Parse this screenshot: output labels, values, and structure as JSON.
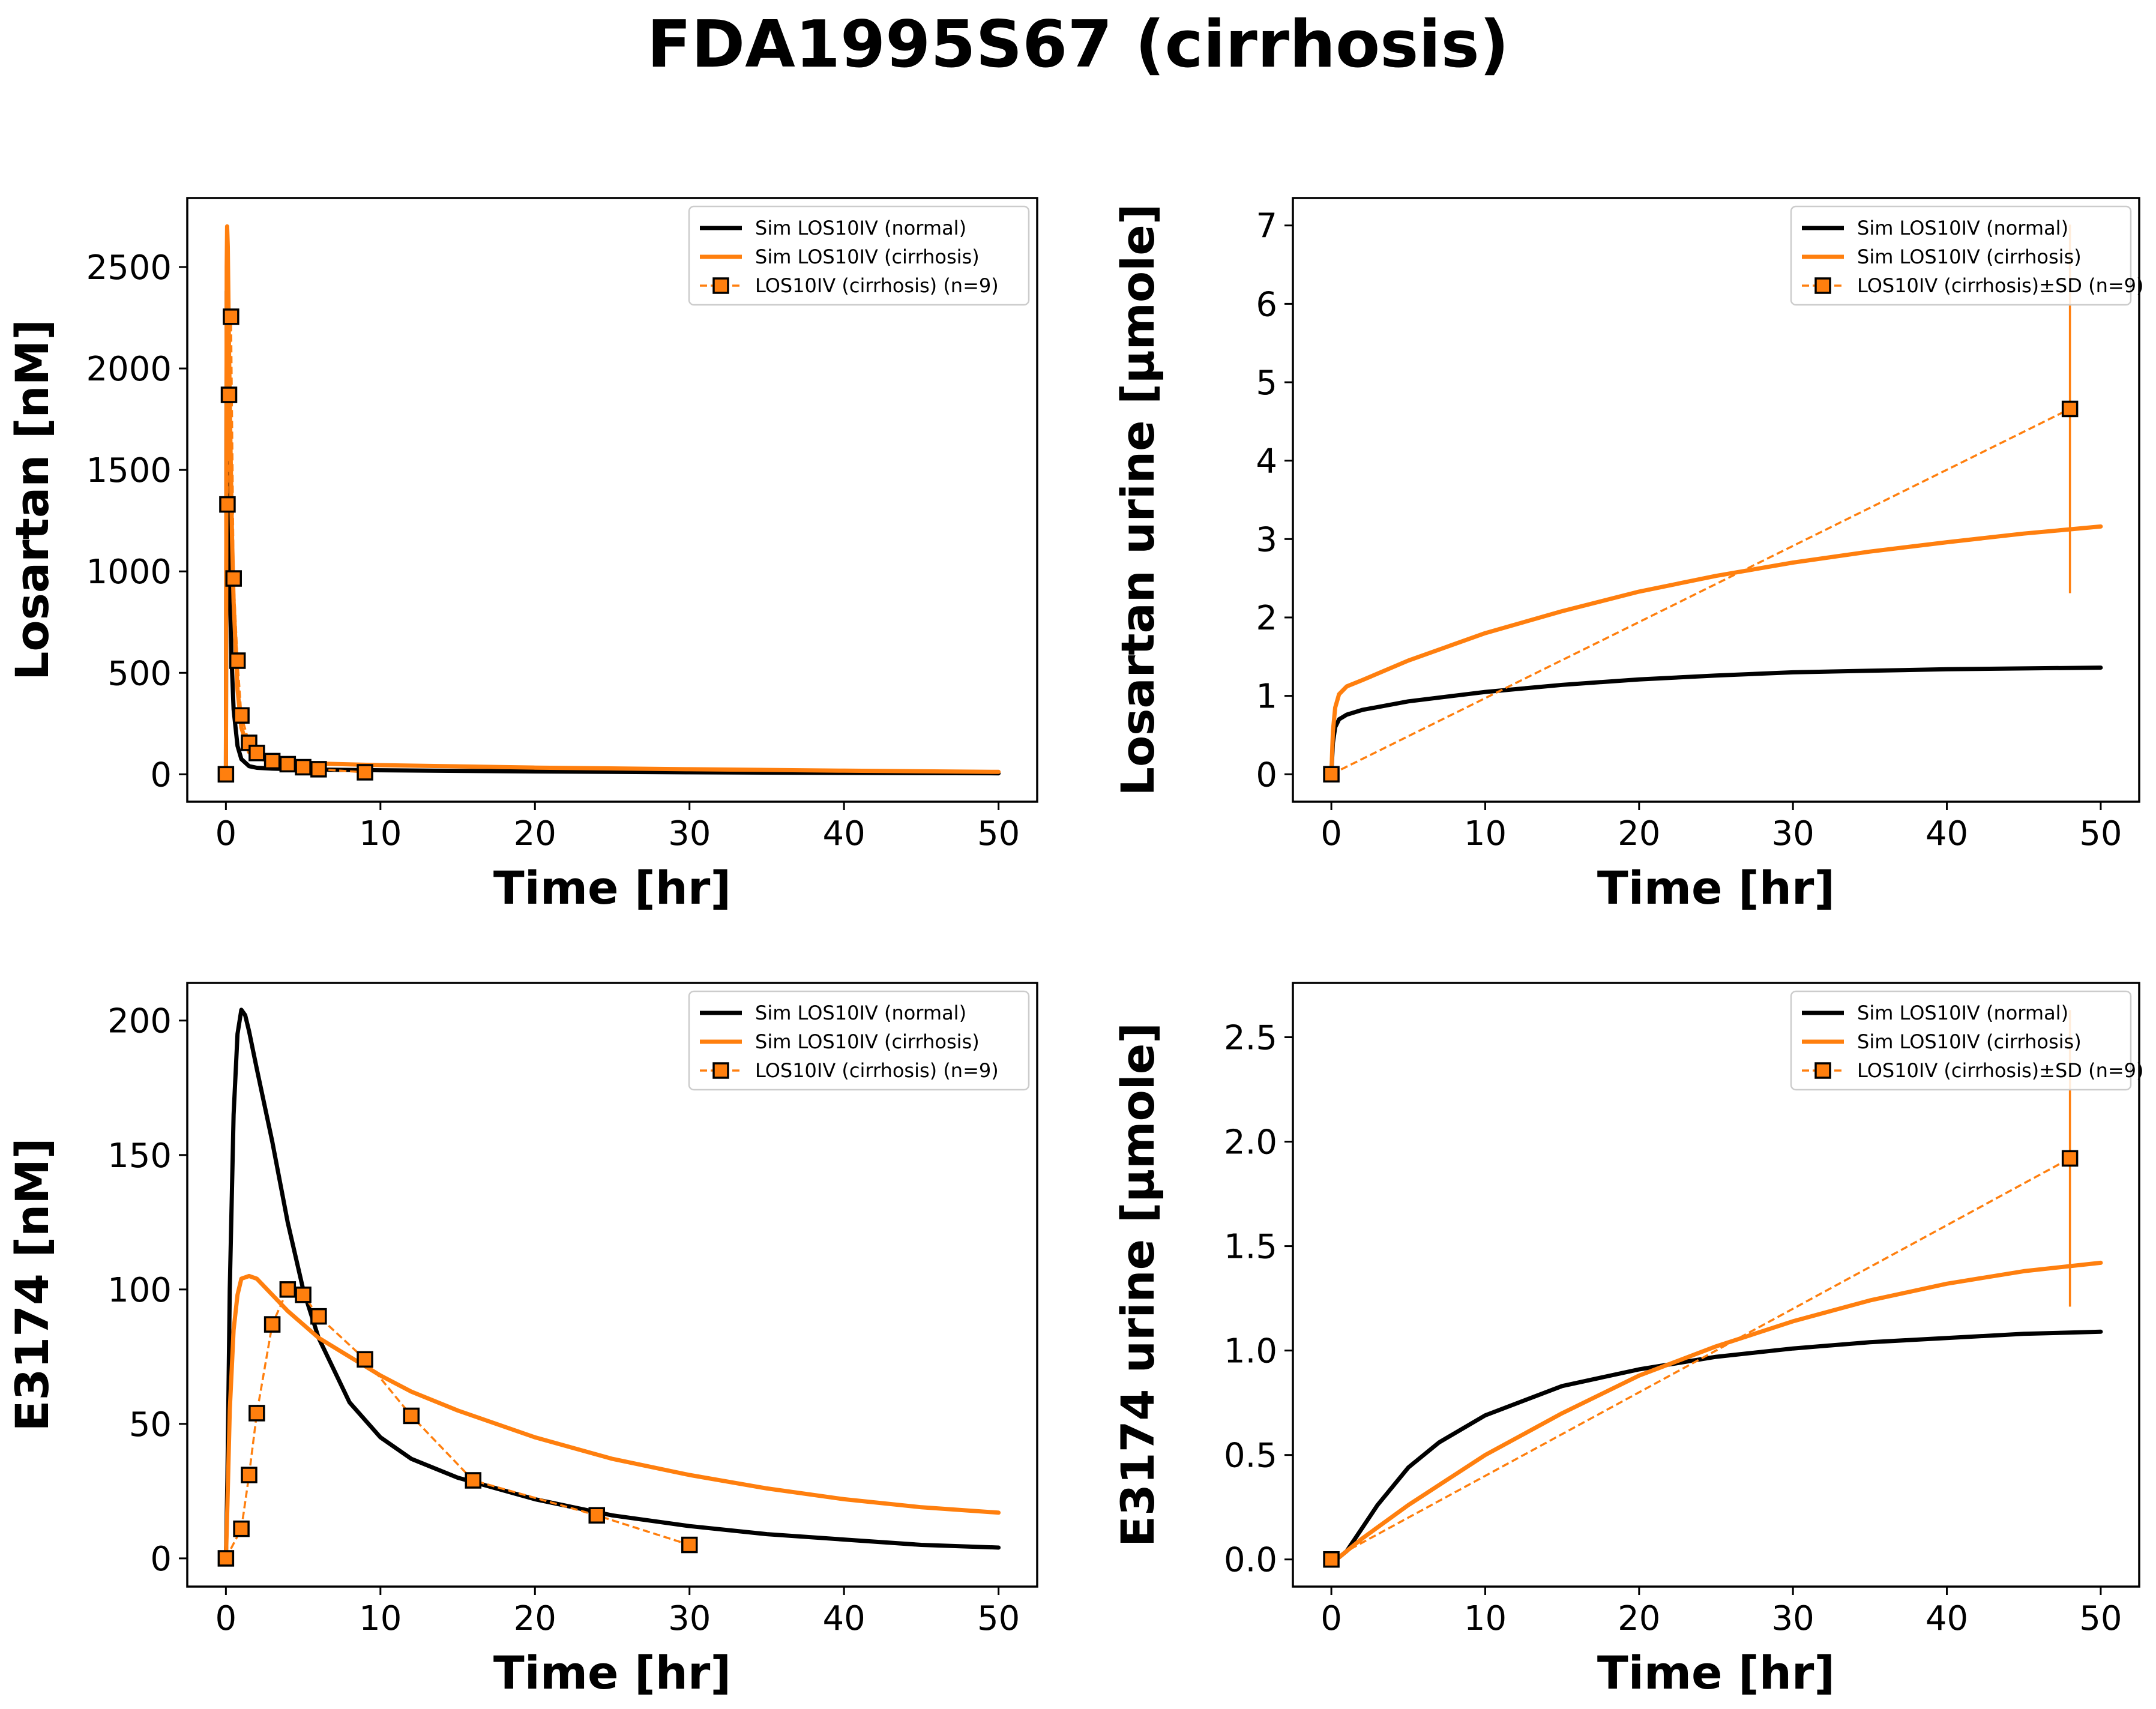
{
  "title": "FDA1995S67 (cirrhosis)",
  "colors": {
    "normal": "#000000",
    "cirrhosis": "#ff7f0e",
    "marker_edge": "#000000",
    "legend_border": "#cccccc"
  },
  "chart_data": [
    {
      "id": "losartan",
      "type": "line",
      "xlabel": "Time [hr]",
      "ylabel": "Losartan [nM]",
      "xlim": [
        -2.5,
        52.5
      ],
      "ylim": [
        -135,
        2840
      ],
      "xticks": [
        0,
        10,
        20,
        30,
        40,
        50
      ],
      "yticks": [
        0,
        500,
        1000,
        1500,
        2000,
        2500
      ],
      "legend_position": "top-right",
      "legend": [
        "Sim LOS10IV (normal)",
        "Sim LOS10IV (cirrhosis)",
        "LOS10IV (cirrhosis) (n=9)"
      ],
      "series": [
        {
          "name": "Sim LOS10IV (normal)",
          "style": "sim",
          "color": "normal",
          "x": [
            0,
            0.05,
            0.1,
            0.15,
            0.25,
            0.35,
            0.5,
            0.75,
            1,
            1.5,
            2,
            3,
            5,
            10,
            20,
            30,
            40,
            50
          ],
          "y": [
            0,
            2380,
            1950,
            1500,
            950,
            600,
            320,
            140,
            75,
            40,
            32,
            28,
            24,
            20,
            14,
            10,
            7,
            5
          ]
        },
        {
          "name": "Sim LOS10IV (cirrhosis)",
          "style": "sim",
          "color": "cirrhosis",
          "x": [
            0,
            0.05,
            0.08,
            0.12,
            0.2,
            0.3,
            0.4,
            0.5,
            0.75,
            1,
            1.5,
            2,
            3,
            5,
            10,
            20,
            30,
            40,
            50
          ],
          "y": [
            0,
            2500,
            2700,
            2600,
            2100,
            1600,
            1150,
            850,
            420,
            230,
            110,
            80,
            65,
            55,
            45,
            33,
            25,
            18,
            12
          ]
        },
        {
          "name": "LOS10IV (cirrhosis) (n=9)",
          "style": "data",
          "color": "cirrhosis",
          "x": [
            0,
            0.1,
            0.2,
            0.33,
            0.5,
            0.75,
            1,
            1.5,
            2,
            3,
            4,
            5,
            6,
            9
          ],
          "y": [
            0,
            1330,
            1870,
            2255,
            965,
            560,
            290,
            155,
            105,
            65,
            50,
            35,
            25,
            10
          ]
        }
      ]
    },
    {
      "id": "losartan-urine",
      "type": "line",
      "xlabel": "Time [hr]",
      "ylabel": "Losartan urine [µmole]",
      "xlim": [
        -2.5,
        52.5
      ],
      "ylim": [
        -0.35,
        7.35
      ],
      "xticks": [
        0,
        10,
        20,
        30,
        40,
        50
      ],
      "yticks": [
        0,
        1,
        2,
        3,
        4,
        5,
        6,
        7
      ],
      "legend_position": "top-right",
      "legend": [
        "Sim LOS10IV (normal)",
        "Sim LOS10IV (cirrhosis)",
        "LOS10IV (cirrhosis)±SD (n=9)"
      ],
      "series": [
        {
          "name": "Sim LOS10IV (normal)",
          "style": "sim",
          "color": "normal",
          "x": [
            0,
            0.1,
            0.25,
            0.5,
            1,
            2,
            5,
            10,
            15,
            20,
            25,
            30,
            35,
            40,
            45,
            50
          ],
          "y": [
            0,
            0.4,
            0.6,
            0.7,
            0.76,
            0.82,
            0.93,
            1.05,
            1.14,
            1.21,
            1.26,
            1.3,
            1.32,
            1.34,
            1.35,
            1.36
          ]
        },
        {
          "name": "Sim LOS10IV (cirrhosis)",
          "style": "sim",
          "color": "cirrhosis",
          "x": [
            0,
            0.1,
            0.25,
            0.5,
            1,
            2,
            5,
            10,
            15,
            20,
            25,
            30,
            35,
            40,
            45,
            50
          ],
          "y": [
            0,
            0.55,
            0.85,
            1.02,
            1.12,
            1.2,
            1.45,
            1.8,
            2.08,
            2.33,
            2.53,
            2.7,
            2.84,
            2.96,
            3.07,
            3.16
          ]
        },
        {
          "name": "LOS10IV (cirrhosis)±SD (n=9)",
          "style": "data",
          "color": "cirrhosis",
          "x": [
            0,
            48
          ],
          "y": [
            0,
            4.66
          ],
          "err": [
            0,
            2.35
          ]
        }
      ]
    },
    {
      "id": "e3174",
      "type": "line",
      "xlabel": "Time [hr]",
      "ylabel": "E3174 [nM]",
      "xlim": [
        -2.5,
        52.5
      ],
      "ylim": [
        -10.5,
        214
      ],
      "xticks": [
        0,
        10,
        20,
        30,
        40,
        50
      ],
      "yticks": [
        0,
        50,
        100,
        150,
        200
      ],
      "legend_position": "top-right",
      "legend": [
        "Sim LOS10IV (normal)",
        "Sim LOS10IV (cirrhosis)",
        "LOS10IV (cirrhosis) (n=9)"
      ],
      "series": [
        {
          "name": "Sim LOS10IV (normal)",
          "style": "sim",
          "color": "normal",
          "x": [
            0,
            0.1,
            0.25,
            0.5,
            0.75,
            1,
            1.25,
            1.5,
            2,
            3,
            4,
            5,
            6,
            8,
            10,
            12,
            15,
            20,
            25,
            30,
            35,
            40,
            45,
            50
          ],
          "y": [
            0,
            30,
            100,
            165,
            195,
            204,
            202,
            196,
            182,
            155,
            125,
            100,
            82,
            58,
            45,
            37,
            30,
            22,
            16,
            12,
            9,
            7,
            5,
            4
          ]
        },
        {
          "name": "Sim LOS10IV (cirrhosis)",
          "style": "sim",
          "color": "cirrhosis",
          "x": [
            0,
            0.1,
            0.25,
            0.5,
            0.75,
            1,
            1.5,
            2,
            3,
            4,
            5,
            6,
            8,
            10,
            12,
            15,
            20,
            25,
            30,
            35,
            40,
            45,
            50
          ],
          "y": [
            0,
            20,
            55,
            85,
            98,
            104,
            105,
            104,
            98,
            92,
            87,
            82,
            75,
            68,
            62,
            55,
            45,
            37,
            31,
            26,
            22,
            19,
            17
          ]
        },
        {
          "name": "LOS10IV (cirrhosis) (n=9)",
          "style": "data",
          "color": "cirrhosis",
          "x": [
            0,
            1,
            1.5,
            2,
            3,
            4,
            5,
            6,
            9,
            12,
            16,
            24,
            30
          ],
          "y": [
            0,
            11,
            31,
            54,
            87,
            100,
            98,
            90,
            74,
            53,
            29,
            16,
            5
          ]
        }
      ]
    },
    {
      "id": "e3174-urine",
      "type": "line",
      "xlabel": "Time [hr]",
      "ylabel": "E3174 urine [µmole]",
      "xlim": [
        -2.5,
        52.5
      ],
      "ylim": [
        -0.13,
        2.76
      ],
      "xticks": [
        0,
        10,
        20,
        30,
        40,
        50
      ],
      "yticks": [
        0,
        0.5,
        1,
        1.5,
        2,
        2.5
      ],
      "ytick_labels": [
        "0.0",
        "0.5",
        "1.0",
        "1.5",
        "2.0",
        "2.5"
      ],
      "legend_position": "top-right",
      "legend": [
        "Sim LOS10IV (normal)",
        "Sim LOS10IV (cirrhosis)",
        "LOS10IV (cirrhosis)±SD (n=9)"
      ],
      "series": [
        {
          "name": "Sim LOS10IV (normal)",
          "style": "sim",
          "color": "normal",
          "x": [
            0,
            0.5,
            1,
            2,
            3,
            5,
            7,
            10,
            15,
            20,
            25,
            30,
            35,
            40,
            45,
            50
          ],
          "y": [
            0,
            0.01,
            0.04,
            0.15,
            0.26,
            0.44,
            0.56,
            0.69,
            0.83,
            0.91,
            0.97,
            1.01,
            1.04,
            1.06,
            1.08,
            1.09
          ]
        },
        {
          "name": "Sim LOS10IV (cirrhosis)",
          "style": "sim",
          "color": "cirrhosis",
          "x": [
            0,
            0.5,
            1,
            2,
            5,
            10,
            15,
            20,
            25,
            30,
            35,
            40,
            45,
            50
          ],
          "y": [
            0,
            0.01,
            0.04,
            0.1,
            0.26,
            0.5,
            0.7,
            0.88,
            1.02,
            1.14,
            1.24,
            1.32,
            1.38,
            1.42
          ]
        },
        {
          "name": "LOS10IV (cirrhosis)±SD (n=9)",
          "style": "data",
          "color": "cirrhosis",
          "x": [
            0,
            48
          ],
          "y": [
            0,
            1.92
          ],
          "err": [
            0,
            0.71
          ]
        }
      ]
    }
  ]
}
